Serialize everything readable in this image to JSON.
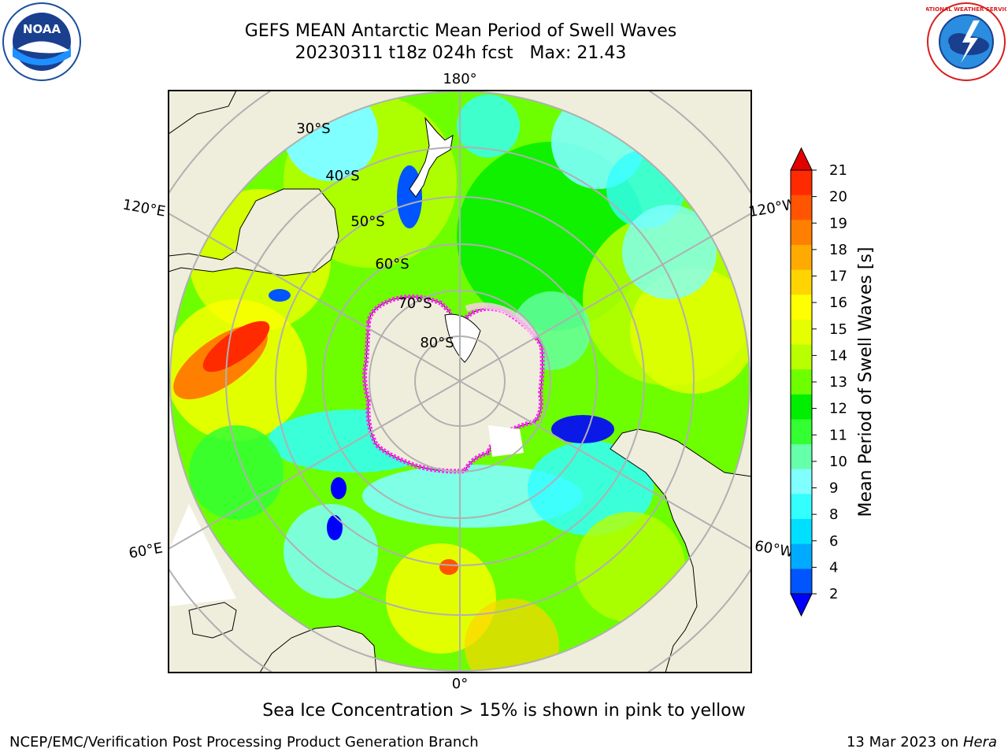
{
  "title": {
    "line1": "GEFS MEAN Antarctic Mean Period of Swell Waves",
    "line2": "20230311 t18z 024h fcst   Max: 21.43"
  },
  "logos": {
    "left": {
      "icon": "noaa-logo",
      "text": "NOAA"
    },
    "right": {
      "icon": "nws-logo",
      "text": "NATIONAL WEATHER SERVICE"
    }
  },
  "map": {
    "projection": "south-polar-stereographic",
    "lon_labels": {
      "top": "180°",
      "bottom": "0°",
      "upper_left": "120°E",
      "lower_left": "60°E",
      "upper_right": "120°W",
      "lower_right": "60°W"
    },
    "lat_labels": [
      "30°S",
      "40°S",
      "50°S",
      "60°S",
      "70°S",
      "80°S"
    ],
    "colors": {
      "land": "#efeedc",
      "sea_ice_edge": "#ff2cf0",
      "grid": "#b0b0b0",
      "coast": "#000000"
    }
  },
  "colorbar": {
    "label": "Mean Period of Swell Waves [s]",
    "ticks": [
      "21",
      "20",
      "19",
      "18",
      "17",
      "16",
      "15",
      "14",
      "13",
      "12",
      "11",
      "10",
      "9",
      "8",
      "6",
      "4",
      "2"
    ],
    "colors": [
      "#e50000",
      "#ff2a00",
      "#ff5500",
      "#ff8000",
      "#ffaa00",
      "#ffd400",
      "#ffff00",
      "#e5ff00",
      "#b8ff00",
      "#6dff00",
      "#00ee00",
      "#33ff33",
      "#66ffaa",
      "#7fffff",
      "#33ffff",
      "#00dfff",
      "#00aaff",
      "#0055ff",
      "#0000ff"
    ]
  },
  "caption": "Sea Ice Concentration > 15% is shown in pink to yellow",
  "footer": {
    "left": "NCEP/EMC/Verification Post Processing Product Generation Branch",
    "right_prefix": "13 Mar 2023 on ",
    "right_italic": "Hera"
  }
}
